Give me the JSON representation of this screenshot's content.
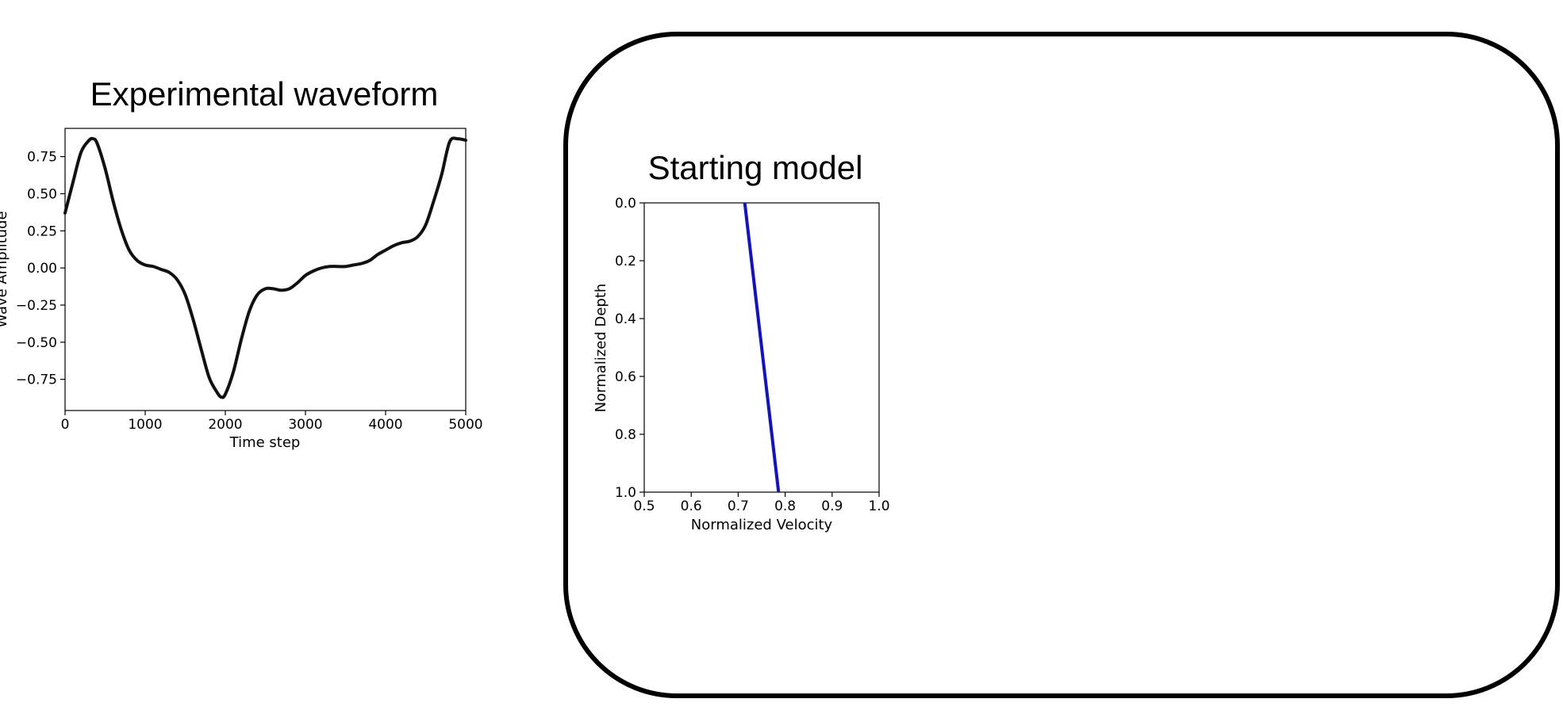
{
  "chart_data": [
    {
      "type": "line",
      "title": "Experimental waveform",
      "xlabel": "Time step",
      "ylabel": "Wave Amplitude",
      "xlim": [
        0,
        5000
      ],
      "ylim": [
        -0.96,
        0.94
      ],
      "xticks": [
        0,
        1000,
        2000,
        3000,
        4000,
        5000
      ],
      "xtick_labels": [
        "0",
        "1000",
        "2000",
        "3000",
        "4000",
        "5000"
      ],
      "yticks": [
        0.75,
        0.5,
        0.25,
        0.0,
        -0.25,
        -0.5,
        -0.75
      ],
      "ytick_labels": [
        "0.75",
        "0.50",
        "0.25",
        "0.00",
        "−0.25",
        "−0.50",
        "−0.75"
      ],
      "grid": false,
      "series": [
        {
          "color": "#111111",
          "x": [
            0,
            100,
            200,
            300,
            350,
            400,
            500,
            600,
            700,
            800,
            900,
            1000,
            1100,
            1200,
            1300,
            1400,
            1500,
            1600,
            1700,
            1800,
            1900,
            1950,
            2000,
            2100,
            2200,
            2300,
            2400,
            2500,
            2600,
            2700,
            2800,
            2900,
            3000,
            3100,
            3200,
            3300,
            3400,
            3500,
            3600,
            3700,
            3800,
            3900,
            4000,
            4100,
            4200,
            4300,
            4400,
            4500,
            4600,
            4700,
            4800,
            4900,
            5000
          ],
          "y": [
            0.37,
            0.58,
            0.78,
            0.86,
            0.87,
            0.84,
            0.67,
            0.45,
            0.26,
            0.12,
            0.05,
            0.02,
            0.01,
            -0.01,
            -0.03,
            -0.08,
            -0.18,
            -0.35,
            -0.55,
            -0.74,
            -0.84,
            -0.87,
            -0.85,
            -0.7,
            -0.48,
            -0.29,
            -0.18,
            -0.14,
            -0.14,
            -0.15,
            -0.14,
            -0.1,
            -0.05,
            -0.02,
            0.0,
            0.01,
            0.01,
            0.01,
            0.02,
            0.03,
            0.05,
            0.09,
            0.12,
            0.15,
            0.17,
            0.18,
            0.21,
            0.29,
            0.45,
            0.63,
            0.85,
            0.87,
            0.86
          ]
        }
      ]
    },
    {
      "type": "line",
      "title": "Starting model",
      "xlabel": "Normalized Velocity",
      "ylabel": "Normalized Depth",
      "xlim": [
        0.5,
        1.0
      ],
      "ylim": [
        1.0,
        0.0
      ],
      "y_inverted": true,
      "xticks": [
        0.5,
        0.6,
        0.7,
        0.8,
        0.9,
        1.0
      ],
      "xtick_labels": [
        "0.5",
        "0.6",
        "0.7",
        "0.8",
        "0.9",
        "1.0"
      ],
      "yticks": [
        0.0,
        0.2,
        0.4,
        0.6,
        0.8,
        1.0
      ],
      "ytick_labels": [
        "0.0",
        "0.2",
        "0.4",
        "0.6",
        "0.8",
        "1.0"
      ],
      "grid": false,
      "series": [
        {
          "color": "#1010d0",
          "x": [
            0.714,
            0.786
          ],
          "y": [
            0.0,
            1.0
          ]
        }
      ]
    }
  ]
}
